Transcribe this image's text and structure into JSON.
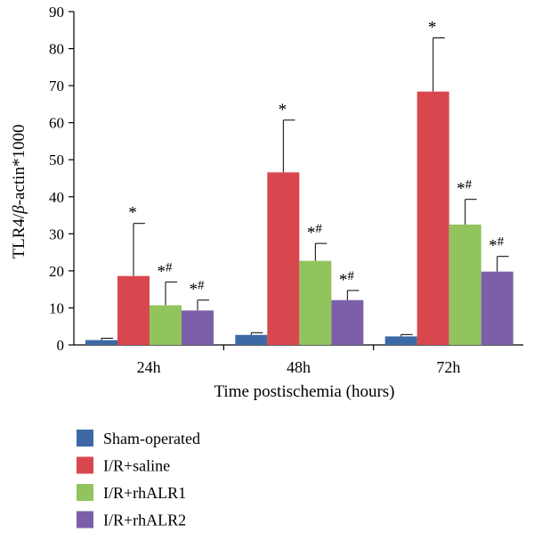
{
  "chart_data": {
    "type": "bar",
    "xlabel": "Time postischemia (hours)",
    "ylabel_prefix": "TLR4/",
    "ylabel_italic": "β",
    "ylabel_suffix": "-actin*1000",
    "ylim": [
      0,
      90
    ],
    "yticks": [
      "0",
      "10",
      "20",
      "30",
      "40",
      "50",
      "60",
      "70",
      "80",
      "90"
    ],
    "grid": false,
    "legend_position": "bottom-left",
    "categories": [
      "24h",
      "48h",
      "72h"
    ],
    "series": [
      {
        "name": "Sham-operated",
        "color": "#3d6aa6",
        "values": [
          1.3,
          2.7,
          2.3
        ],
        "errors": [
          0.5,
          0.6,
          0.5
        ],
        "marks": [
          "",
          "",
          ""
        ]
      },
      {
        "name": "I/R+saline",
        "color": "#d9474e",
        "values": [
          18.6,
          46.6,
          68.4
        ],
        "errors": [
          14.2,
          14.1,
          14.5
        ],
        "marks": [
          "*",
          "*",
          "*"
        ]
      },
      {
        "name": "I/R+rhALR1",
        "color": "#91c45c",
        "values": [
          10.7,
          22.7,
          32.5
        ],
        "errors": [
          6.3,
          4.7,
          6.8
        ],
        "marks": [
          "*#",
          "*#",
          "*#"
        ]
      },
      {
        "name": "I/R+rhALR2",
        "color": "#7b5fa8",
        "values": [
          9.3,
          12.1,
          19.8
        ],
        "errors": [
          2.8,
          2.6,
          4.1
        ],
        "marks": [
          "*#",
          "*#",
          "*#"
        ]
      }
    ]
  }
}
